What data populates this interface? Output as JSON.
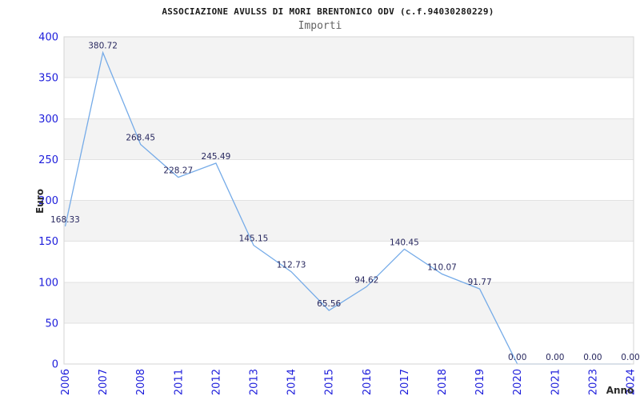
{
  "chart_data": {
    "type": "line",
    "title": "ASSOCIAZIONE AVULSS DI MORI BRENTONICO ODV (c.f.94030280229)",
    "subtitle": "Importi",
    "xlabel": "Anno",
    "ylabel": "Euro",
    "categories": [
      "2006",
      "2007",
      "2008",
      "2011",
      "2012",
      "2013",
      "2014",
      "2015",
      "2016",
      "2017",
      "2018",
      "2019",
      "2020",
      "2021",
      "2023",
      "2024"
    ],
    "values": [
      168.33,
      380.72,
      268.45,
      228.27,
      245.49,
      145.15,
      112.73,
      65.56,
      94.62,
      140.45,
      110.07,
      91.77,
      0.0,
      0.0,
      0.0,
      0.0
    ],
    "point_labels": [
      "168.33",
      "380.72",
      "268.45",
      "228.27",
      "245.49",
      "145.15",
      "112.73",
      "65.56",
      "94.62",
      "140.45",
      "110.07",
      "91.77",
      "0.00",
      "0.00",
      "0.00",
      "0.00"
    ],
    "ylim": [
      0,
      400
    ],
    "ytick_step": 50,
    "ytick_labels": [
      "0",
      "50",
      "100",
      "150",
      "200",
      "250",
      "300",
      "350",
      "400"
    ],
    "grid": "horizontal-only",
    "legend": "none",
    "background_bands": "alternating gray/white every 50 units, gray on 50-100, 150-200, 250-300, 350-400",
    "colors": {
      "line": "#75abe8",
      "point_label": "#28285f",
      "tick_label": "#1c1cdb",
      "band_fill": "#f3f3f3",
      "grid_line": "#e2e2e2",
      "plot_border": "#d6d6d6",
      "title": "#1a1a1a",
      "subtitle": "#636363",
      "axis_title": "#2b2b2b"
    }
  }
}
